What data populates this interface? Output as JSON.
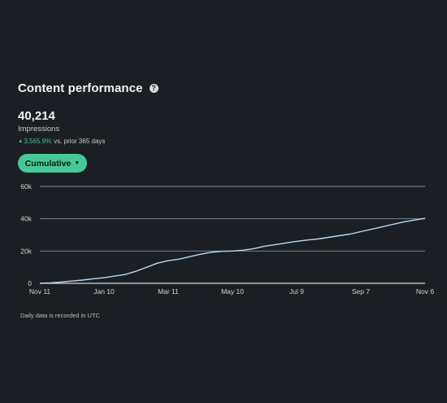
{
  "header": {
    "title": "Content performance",
    "help_icon": "?"
  },
  "metric": {
    "value": "40,214",
    "label": "Impressions",
    "change_arrow": "▲",
    "change_value": "3,565.9%",
    "change_suffix": "vs. prior 365 days",
    "accent_color": "#44c48c"
  },
  "toggle": {
    "label": "Cumulative",
    "caret": "▼"
  },
  "chart_data": {
    "type": "line",
    "title": "",
    "xlabel": "",
    "ylabel": "",
    "x_tick_labels": [
      "Nov 11",
      "Jan 10",
      "Mar 11",
      "May 10",
      "Jul 9",
      "Sep 7",
      "Nov 6"
    ],
    "y_tick_labels": [
      "0",
      "20k",
      "40k",
      "60k"
    ],
    "y_ticks": [
      0,
      20000,
      40000,
      60000
    ],
    "ylim": [
      0,
      60000
    ],
    "grid": true,
    "line_color": "#b9d6f2",
    "series": [
      {
        "x": [
          "Nov 11",
          "Nov 21",
          "Dec 1",
          "Dec 11",
          "Dec 21",
          "Dec 31",
          "Jan 10",
          "Jan 20",
          "Jan 30",
          "Feb 9",
          "Feb 19",
          "Mar 1",
          "Mar 11",
          "Mar 21",
          "Mar 31",
          "Apr 10",
          "Apr 20",
          "Apr 30",
          "May 10",
          "May 20",
          "May 30",
          "Jun 9",
          "Jun 19",
          "Jun 29",
          "Jul 9",
          "Jul 19",
          "Jul 29",
          "Aug 8",
          "Aug 18",
          "Aug 28",
          "Sep 7",
          "Sep 17",
          "Sep 27",
          "Oct 7",
          "Oct 17",
          "Oct 27",
          "Nov 6"
        ],
        "values": [
          0,
          300,
          800,
          1400,
          2000,
          2800,
          3500,
          4500,
          5500,
          7500,
          10000,
          12500,
          14000,
          15000,
          16500,
          18000,
          19200,
          19800,
          20000,
          20500,
          21500,
          23000,
          24000,
          25000,
          26000,
          26800,
          27500,
          28500,
          29500,
          30500,
          32000,
          33500,
          35000,
          36500,
          38000,
          39200,
          40214
        ]
      }
    ]
  },
  "footnote": "Daily data is recorded in UTC"
}
